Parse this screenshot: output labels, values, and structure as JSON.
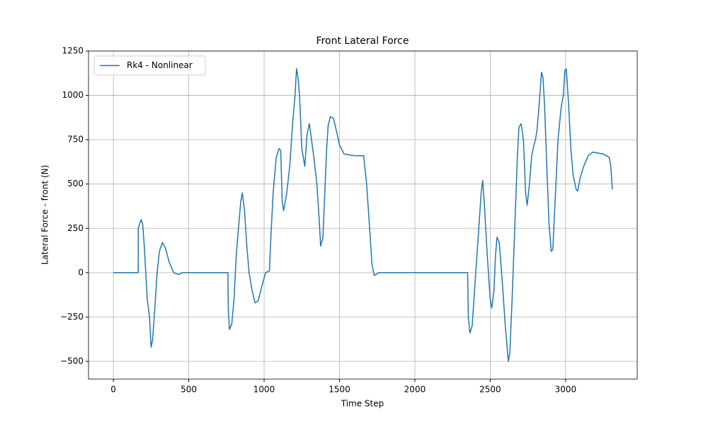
{
  "chart_data": {
    "type": "line",
    "title": "Front Lateral Force",
    "xlabel": "Time Step",
    "ylabel": "Lateral Force - front (N)",
    "x": [
      0,
      165,
      165,
      175,
      185,
      195,
      205,
      215,
      225,
      240,
      250,
      260,
      275,
      290,
      305,
      325,
      345,
      370,
      400,
      430,
      460,
      500,
      760,
      762,
      770,
      785,
      800,
      815,
      830,
      845,
      855,
      870,
      885,
      900,
      920,
      940,
      960,
      990,
      1010,
      1035,
      1045,
      1060,
      1080,
      1100,
      1110,
      1120,
      1130,
      1150,
      1170,
      1190,
      1205,
      1215,
      1225,
      1235,
      1250,
      1270,
      1285,
      1300,
      1310,
      1330,
      1350,
      1365,
      1375,
      1390,
      1400,
      1415,
      1425,
      1440,
      1460,
      1480,
      1500,
      1530,
      1600,
      1660,
      1680,
      1700,
      1715,
      1730,
      1760,
      1800,
      2350,
      2355,
      2365,
      2380,
      2400,
      2420,
      2440,
      2450,
      2460,
      2480,
      2500,
      2510,
      2525,
      2535,
      2545,
      2560,
      2580,
      2600,
      2620,
      2630,
      2645,
      2665,
      2680,
      2690,
      2705,
      2720,
      2735,
      2745,
      2760,
      2775,
      2790,
      2800,
      2810,
      2825,
      2840,
      2850,
      2860,
      2875,
      2890,
      2905,
      2915,
      2930,
      2950,
      2970,
      2985,
      2995,
      3005,
      3020,
      3035,
      3050,
      3070,
      3080,
      3095,
      3120,
      3150,
      3180,
      3250,
      3290,
      3300,
      3310
    ],
    "series": [
      {
        "name": "Rk4 - Nonlinear",
        "color": "#1f77b4",
        "values": [
          0,
          0,
          250,
          280,
          300,
          270,
          150,
          0,
          -150,
          -250,
          -420,
          -380,
          -200,
          0,
          120,
          170,
          140,
          60,
          0,
          -10,
          0,
          0,
          0,
          -200,
          -320,
          -290,
          -150,
          100,
          250,
          400,
          450,
          350,
          150,
          0,
          -100,
          -170,
          -160,
          -60,
          0,
          10,
          200,
          450,
          650,
          700,
          690,
          400,
          350,
          450,
          600,
          850,
          1000,
          1150,
          1100,
          1000,
          700,
          600,
          780,
          840,
          780,
          650,
          500,
          300,
          150,
          200,
          400,
          700,
          830,
          880,
          870,
          800,
          720,
          670,
          660,
          660,
          500,
          250,
          50,
          -15,
          0,
          0,
          0,
          -250,
          -340,
          -300,
          -50,
          200,
          450,
          520,
          400,
          100,
          -150,
          -200,
          -100,
          100,
          200,
          170,
          -50,
          -300,
          -500,
          -450,
          -150,
          300,
          650,
          820,
          840,
          750,
          450,
          380,
          500,
          660,
          720,
          750,
          800,
          950,
          1130,
          1100,
          950,
          600,
          280,
          120,
          130,
          400,
          750,
          930,
          1000,
          1140,
          1150,
          950,
          700,
          550,
          470,
          460,
          530,
          600,
          660,
          680,
          670,
          650,
          600,
          470
        ]
      }
    ],
    "xlim": [
      -165,
      3475
    ],
    "ylim": [
      -600,
      1250
    ],
    "xticks": [
      0,
      500,
      1000,
      1500,
      2000,
      2500,
      3000
    ],
    "yticks": [
      {
        "value": -500,
        "label": "−500"
      },
      {
        "value": -250,
        "label": "−250"
      },
      0,
      250,
      500,
      750,
      1000,
      1250
    ],
    "grid": true,
    "legend": "upper left"
  }
}
